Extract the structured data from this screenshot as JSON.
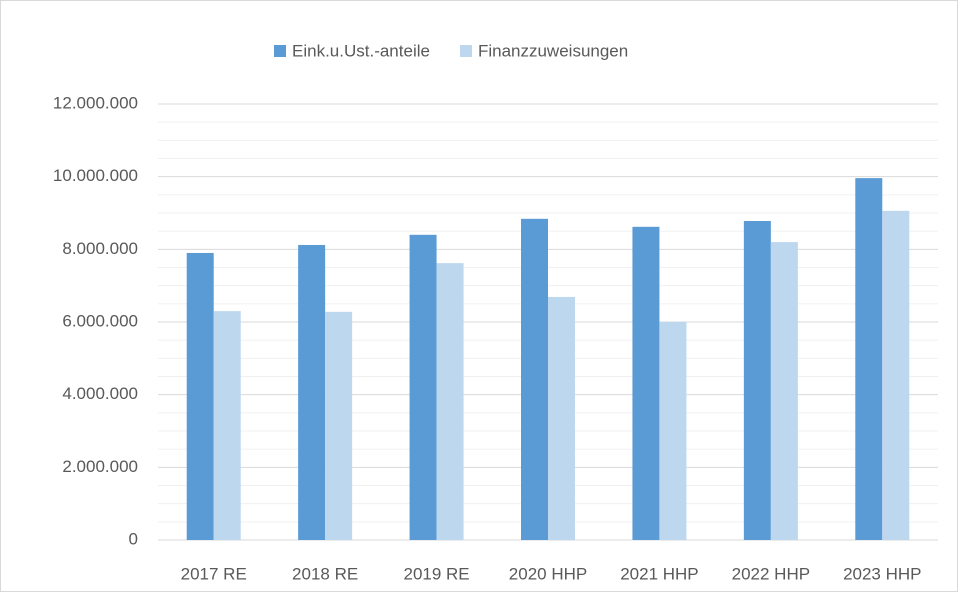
{
  "chart_data": {
    "type": "bar",
    "categories": [
      "2017 RE",
      "2018 RE",
      "2019 RE",
      "2020 HHP",
      "2021 HHP",
      "2022 HHP",
      "2023 HHP"
    ],
    "series": [
      {
        "name": "Eink.u.Ust.-anteile",
        "color": "#5b9bd5",
        "values": [
          7900000,
          8120000,
          8400000,
          8840000,
          8620000,
          8780000,
          9960000
        ]
      },
      {
        "name": "Finanzzuweisungen",
        "color": "#bdd7ee",
        "values": [
          6300000,
          6280000,
          7620000,
          6690000,
          6000000,
          8200000,
          9060000
        ]
      }
    ],
    "ylim": [
      0,
      12000000
    ],
    "yticks": [
      0,
      {
        "value": 2000000,
        "label": "2.000.000"
      },
      {
        "value": 4000000,
        "label": "4.000.000"
      },
      {
        "value": 6000000,
        "label": "6.000.000"
      },
      {
        "value": 8000000,
        "label": "8.000.000"
      },
      {
        "value": 10000000,
        "label": "10.000.000"
      },
      {
        "value": 12000000,
        "label": "12.000.000"
      }
    ],
    "minor_yticks": [
      500000,
      1000000,
      1500000,
      2500000,
      3000000,
      3500000,
      4500000,
      5000000,
      5500000,
      6500000,
      7000000,
      7500000,
      8500000,
      9000000,
      9500000,
      10500000,
      11000000,
      11500000
    ],
    "grid": true,
    "legend": "top"
  }
}
